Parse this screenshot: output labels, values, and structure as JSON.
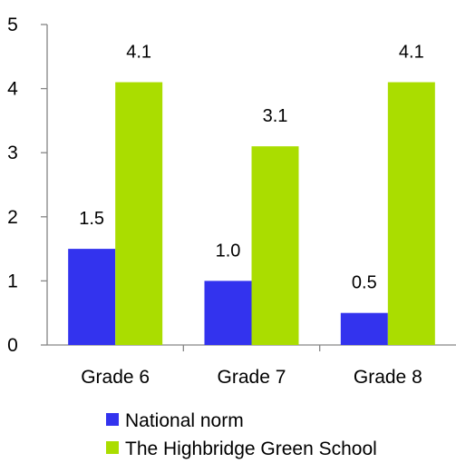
{
  "chart_data": {
    "type": "bar",
    "categories": [
      "Grade 6",
      "Grade 7",
      "Grade 8"
    ],
    "series": [
      {
        "name": "National norm",
        "values": [
          1.5,
          1.0,
          0.5
        ],
        "labels": [
          "1.5",
          "1.0",
          "0.5"
        ],
        "color": "#3333ee"
      },
      {
        "name": "The Highbridge Green School",
        "values": [
          4.1,
          3.1,
          4.1
        ],
        "labels": [
          "4.1",
          "3.1",
          "4.1"
        ],
        "color": "#aadd00"
      }
    ],
    "ylim": [
      0,
      5
    ],
    "yticks": [
      0,
      1,
      2,
      3,
      4,
      5
    ],
    "ytick_labels": [
      "0",
      "1",
      "2",
      "3",
      "4",
      "5"
    ],
    "grid": false,
    "legend": "bottom-center"
  }
}
